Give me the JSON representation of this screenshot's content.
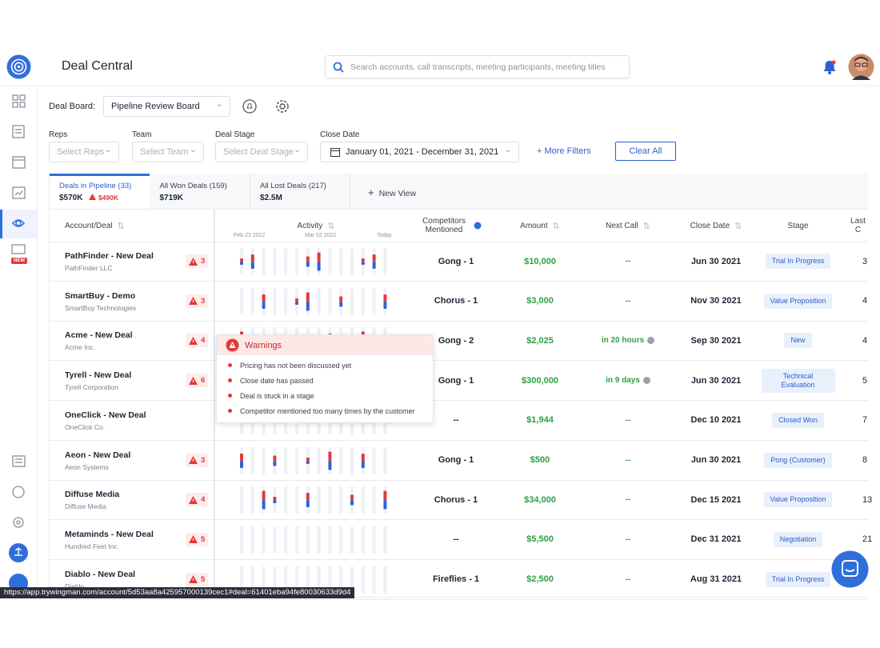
{
  "header": {
    "title": "Deal Central",
    "search_placeholder": "Search accounts, call transcripts, meeting participants, meeting titles"
  },
  "board": {
    "label": "Deal Board:",
    "value": "Pipeline Review Board"
  },
  "filters": [
    {
      "label": "Reps",
      "placeholder": "Select Reps"
    },
    {
      "label": "Team",
      "placeholder": "Select Team"
    },
    {
      "label": "Deal Stage",
      "placeholder": "Select Deal Stage"
    },
    {
      "label": "Close Date",
      "placeholder": "January 01, 2021 - December 31, 2021"
    }
  ],
  "more_filters": "+ More Filters",
  "clear_all": "Clear All",
  "sidebar_badge": "NEW",
  "tabs": [
    {
      "title": "Deals in Pipeline (33)",
      "amount": "$570K",
      "risk": "$490K"
    },
    {
      "title": "All Won Deals (159)",
      "amount": "$719K"
    },
    {
      "title": "All Lost Deals (217)",
      "amount": "$2.5M"
    }
  ],
  "new_view": "New View",
  "columns": [
    "Account/Deal",
    "Activity",
    "Competitors Mentioned",
    "Amount",
    "Next Call",
    "Close Date",
    "Stage",
    "Last C"
  ],
  "activity_dates": [
    "Feb 23 2022",
    "Mar 02 2022",
    "Today"
  ],
  "rows": [
    {
      "deal": "PathFinder - New Deal",
      "account": "PathFinder LLC",
      "warnings": 3,
      "competitors": "Gong - 1",
      "amount": "$10,000",
      "next_call": "--",
      "close_date": "Jun 30 2021",
      "stage": "Trial In Progress",
      "last": "3"
    },
    {
      "deal": "SmartBuy - Demo",
      "account": "SmartBuy Technologies",
      "warnings": 3,
      "competitors": "Chorus - 1",
      "amount": "$3,000",
      "next_call": "--",
      "close_date": "Nov 30 2021",
      "stage": "Value Proposition",
      "last": "4"
    },
    {
      "deal": "Acme - New Deal",
      "account": "Acme Inc.",
      "warnings": 4,
      "competitors": "Gong - 2",
      "amount": "$2,025",
      "next_call": "in 20 hours",
      "close_date": "Sep 30 2021",
      "stage": "New",
      "last": "4"
    },
    {
      "deal": "Tyrell - New Deal",
      "account": "Tyrell Corporation",
      "warnings": 6,
      "competitors": "Gong - 1",
      "amount": "$300,000",
      "next_call": "in 9 days",
      "close_date": "Jun 30 2021",
      "stage": "Technical Evaluation",
      "last": "5"
    },
    {
      "deal": "OneClick - New Deal",
      "account": "OneClick Co.",
      "warnings": null,
      "competitors": "--",
      "amount": "$1,944",
      "next_call": "--",
      "close_date": "Dec 10 2021",
      "stage": "Closed Won",
      "last": "7"
    },
    {
      "deal": "Aeon - New Deal",
      "account": "Aeon Systems",
      "warnings": 3,
      "competitors": "Gong - 1",
      "amount": "$500",
      "next_call": "--",
      "close_date": "Jun 30 2021",
      "stage": "Pong (Customer)",
      "last": "8"
    },
    {
      "deal": "Diffuse Media",
      "account": "Diffuse Media",
      "warnings": 4,
      "competitors": "Chorus - 1",
      "amount": "$34,000",
      "next_call": "--",
      "close_date": "Dec 15 2021",
      "stage": "Value Proposition",
      "last": "13"
    },
    {
      "deal": "Metaminds - New Deal",
      "account": "Hundred Feet Inc.",
      "warnings": 5,
      "competitors": "--",
      "amount": "$5,500",
      "next_call": "--",
      "close_date": "Dec 31 2021",
      "stage": "Negotiation",
      "last": "21"
    },
    {
      "deal": "Diablo - New Deal",
      "account": "Diablo",
      "warnings": 5,
      "competitors": "Fireflies - 1",
      "amount": "$2,500",
      "next_call": "--",
      "close_date": "Aug 31 2021",
      "stage": "Trial In Progress",
      "last": null
    }
  ],
  "tooltip": {
    "title": "Warnings",
    "items": [
      "Pricing has not been discussed yet",
      "Close date has passed",
      "Deal is stuck in a stage",
      "Competitor mentioned too many times by the customer"
    ]
  },
  "status_url": "https://app.trywingman.com/account/5d53aa8a425957000139cec1#deal=61401eba94fe80030633d9d4"
}
